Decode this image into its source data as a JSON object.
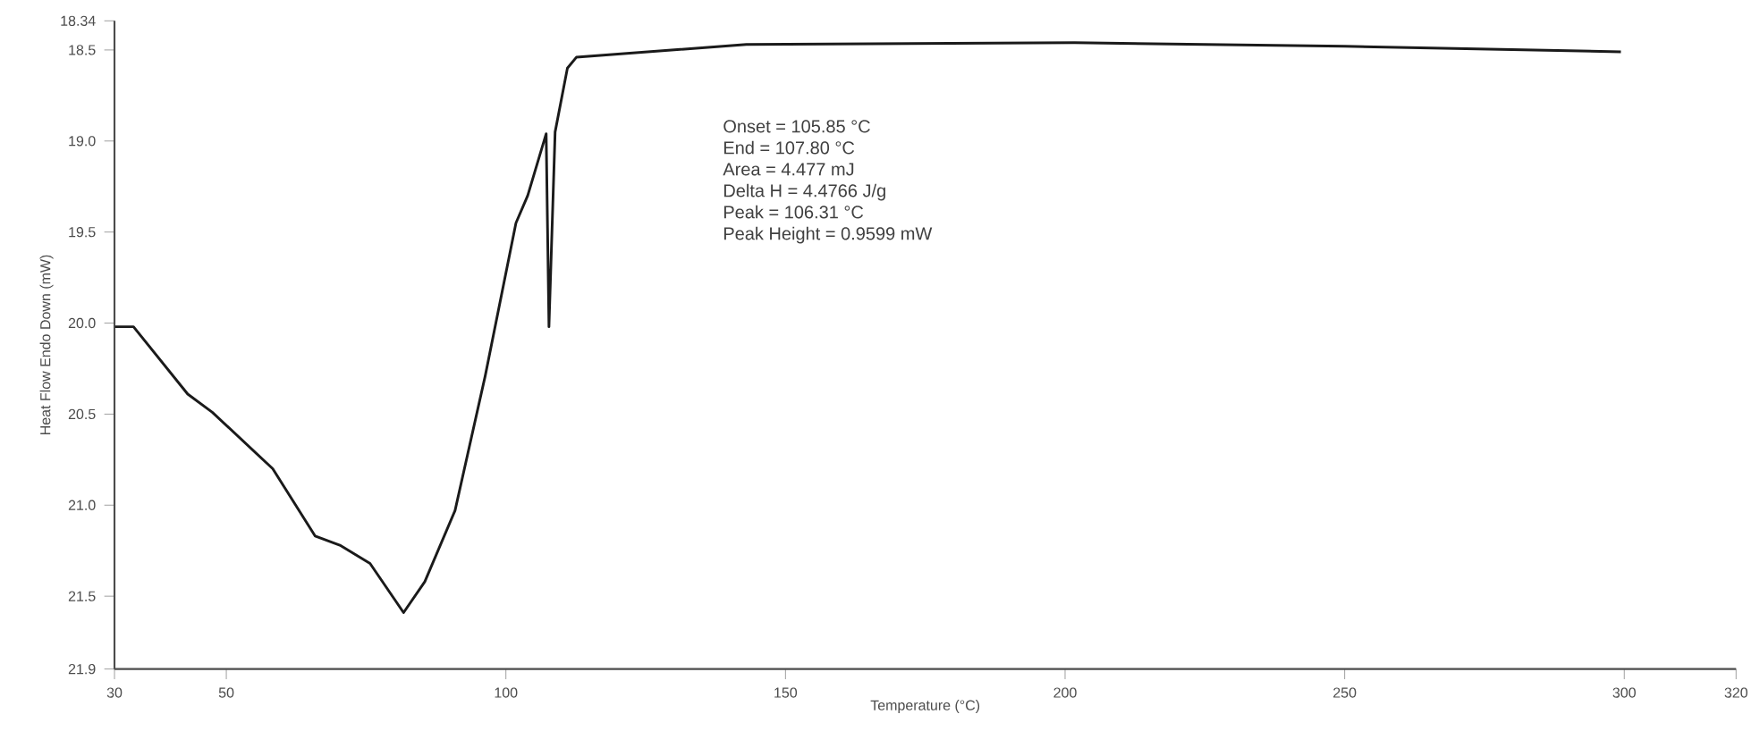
{
  "chart_data": {
    "type": "line",
    "xlabel": "Temperature (°C)",
    "ylabel": "Heat Flow Endo Down (mW)",
    "x": [
      30.1,
      33.4,
      43.1,
      47.5,
      58.3,
      65.9,
      70.3,
      75.7,
      81.7,
      85.5,
      90.9,
      96.3,
      101.8,
      103.9,
      107.2,
      107.7,
      108.8,
      111.0,
      112.6,
      143.0,
      201.7,
      250.0,
      299.4
    ],
    "series": [
      {
        "color": "#1a1a1a",
        "values": [
          20.02,
          20.02,
          20.39,
          20.49,
          20.8,
          21.17,
          21.22,
          21.32,
          21.59,
          21.42,
          21.03,
          20.29,
          19.45,
          19.3,
          18.96,
          20.02,
          18.95,
          18.6,
          18.54,
          18.47,
          18.46,
          18.48,
          18.51
        ]
      }
    ],
    "xlim": [
      30,
      320
    ],
    "xticks": [
      30,
      50,
      100,
      150,
      200,
      250,
      300,
      320
    ],
    "ylim": [
      21.9,
      18.34
    ],
    "yticks": [
      18.34,
      18.5,
      {
        "value": 19,
        "label": "19.0"
      },
      19.5,
      {
        "value": 20,
        "label": "20.0"
      },
      20.5,
      {
        "value": 21,
        "label": "21.0"
      },
      21.5,
      21.9
    ],
    "annotations": [
      "Onset = 105.85 °C",
      "End = 107.80 °C",
      "Area = 4.477 mJ",
      "Delta H = 4.4766 J/g",
      "Peak = 106.31 °C",
      "Peak Height = 0.9599 mW"
    ],
    "marker": "none",
    "line_style": "solid"
  }
}
